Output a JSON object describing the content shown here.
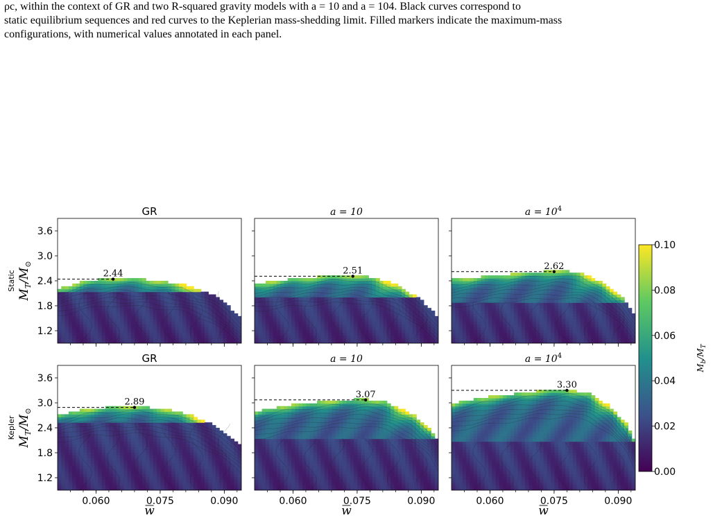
{
  "caption": {
    "line1": "ρc, within the context of GR and two R-squared gravity models with a = 10 and a = 104. Black curves correspond to",
    "line2": "static equilibrium sequences and red curves to the Keplerian mass-shedding limit. Filled markers indicate the maximum-mass",
    "line3": "configurations, with numerical values annotated in each panel."
  },
  "colors": {
    "dashed_line": "#000000",
    "marker": "#000000",
    "contour_line": "#1a1a1a",
    "colormap": [
      "#440154",
      "#3b528b",
      "#21918c",
      "#5ec962",
      "#fde725"
    ]
  },
  "colorbar": {
    "label": "Mb/MT",
    "ticks": [
      "0.00",
      "0.02",
      "0.04",
      "0.06",
      "0.08",
      "0.10"
    ],
    "range": [
      0.0,
      0.1
    ]
  },
  "chart_data": {
    "type": "heatmap",
    "layout": "2 rows x 3 columns",
    "columns": [
      "GR",
      "a=10",
      "a=10^4"
    ],
    "rows": [
      "Static",
      "Kepler"
    ],
    "xlabel": "w̄",
    "ylabel": "MT/M⊙",
    "x_ticks": [
      "0.060",
      "0.075",
      "0.090"
    ],
    "y_ticks": [
      "1.2",
      "1.8",
      "2.4",
      "3.0",
      "3.6"
    ],
    "xlim": [
      0.051,
      0.094
    ],
    "ylim": [
      0.9,
      3.9
    ],
    "panels": [
      {
        "row": "Static",
        "title": "GR",
        "max_label": "2.44",
        "max_w": 0.064,
        "max_M": 2.44,
        "surface_top": [
          [
            0.051,
            2.18
          ],
          [
            0.057,
            2.35
          ],
          [
            0.064,
            2.44
          ],
          [
            0.072,
            2.4
          ],
          [
            0.08,
            2.3
          ],
          [
            0.087,
            2.05
          ],
          [
            0.091,
            1.75
          ],
          [
            0.094,
            1.45
          ]
        ],
        "plateau_M": 2.15,
        "hot_w": 0.082,
        "hot_M": 2.15,
        "peak_value": 0.1
      },
      {
        "row": "Static",
        "title": "a=10",
        "max_label": "2.51",
        "max_w": 0.074,
        "max_M": 2.51,
        "surface_top": [
          [
            0.051,
            2.3
          ],
          [
            0.06,
            2.42
          ],
          [
            0.068,
            2.48
          ],
          [
            0.074,
            2.51
          ],
          [
            0.079,
            2.45
          ],
          [
            0.085,
            2.25
          ],
          [
            0.09,
            1.9
          ],
          [
            0.094,
            1.5
          ]
        ],
        "plateau_M": 2.0,
        "hot_w": 0.085,
        "hot_M": 2.25,
        "peak_value": 0.1
      },
      {
        "row": "Static",
        "title": "a=10^4",
        "max_label": "2.62",
        "max_w": 0.075,
        "max_M": 2.62,
        "surface_top": [
          [
            0.051,
            2.4
          ],
          [
            0.06,
            2.49
          ],
          [
            0.068,
            2.56
          ],
          [
            0.075,
            2.62
          ],
          [
            0.081,
            2.58
          ],
          [
            0.086,
            2.35
          ],
          [
            0.091,
            1.95
          ],
          [
            0.094,
            1.55
          ]
        ],
        "plateau_M": 1.9,
        "hot_w": 0.086,
        "hot_M": 2.35,
        "peak_value": 0.1
      },
      {
        "row": "Kepler",
        "title": "GR",
        "max_label": "2.89",
        "max_w": 0.069,
        "max_M": 2.89,
        "surface_top": [
          [
            0.051,
            2.68
          ],
          [
            0.058,
            2.82
          ],
          [
            0.065,
            2.88
          ],
          [
            0.069,
            2.89
          ],
          [
            0.076,
            2.83
          ],
          [
            0.083,
            2.65
          ],
          [
            0.089,
            2.35
          ],
          [
            0.094,
            1.95
          ]
        ],
        "plateau_M": 2.5,
        "hot_w": 0.086,
        "hot_M": 2.55,
        "peak_value": 0.1
      },
      {
        "row": "Kepler",
        "title": "a=10",
        "max_label": "3.07",
        "max_w": 0.077,
        "max_M": 3.07,
        "surface_top": [
          [
            0.051,
            2.75
          ],
          [
            0.058,
            2.9
          ],
          [
            0.067,
            3.0
          ],
          [
            0.077,
            3.07
          ],
          [
            0.082,
            2.98
          ],
          [
            0.088,
            2.7
          ],
          [
            0.092,
            2.35
          ],
          [
            0.094,
            2.0
          ]
        ],
        "plateau_M": 2.15,
        "hot_w": 0.088,
        "hot_M": 2.7,
        "peak_value": 0.1
      },
      {
        "row": "Kepler",
        "title": "a=10^4",
        "max_label": "3.30",
        "max_w": 0.078,
        "max_M": 3.3,
        "surface_top": [
          [
            0.051,
            2.95
          ],
          [
            0.06,
            3.12
          ],
          [
            0.07,
            3.24
          ],
          [
            0.078,
            3.3
          ],
          [
            0.083,
            3.2
          ],
          [
            0.088,
            2.9
          ],
          [
            0.092,
            2.45
          ],
          [
            0.094,
            2.0
          ]
        ],
        "plateau_M": 2.05,
        "hot_w": 0.089,
        "hot_M": 2.9,
        "peak_value": 0.1
      }
    ]
  }
}
